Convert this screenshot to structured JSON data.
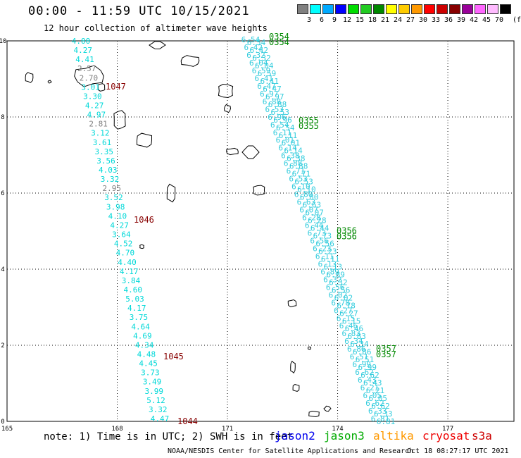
{
  "header": {
    "title": "00:00 - 11:59 UTC 10/15/2021",
    "subtitle": "12 hour collection of altimeter wave heights"
  },
  "legend": {
    "unit": "(ft)",
    "bins": [
      {
        "color": "#808080",
        "label": "3"
      },
      {
        "color": "#00ffff",
        "label": "6"
      },
      {
        "color": "#00aaff",
        "label": "9"
      },
      {
        "color": "#0000ff",
        "label": "12"
      },
      {
        "color": "#00dd00",
        "label": "15"
      },
      {
        "color": "#22cc22",
        "label": "18"
      },
      {
        "color": "#008800",
        "label": "21"
      },
      {
        "color": "#ffff00",
        "label": "24"
      },
      {
        "color": "#ffcc00",
        "label": "27"
      },
      {
        "color": "#ff9900",
        "label": "30"
      },
      {
        "color": "#ff0000",
        "label": "33"
      },
      {
        "color": "#cc0000",
        "label": "36"
      },
      {
        "color": "#880000",
        "label": "39"
      },
      {
        "color": "#990099",
        "label": "42"
      },
      {
        "color": "#ff66ff",
        "label": "45"
      },
      {
        "color": "#ffbbff",
        "label": "70"
      },
      {
        "color": "#000000",
        "label": ""
      }
    ]
  },
  "map": {
    "lon_ticks": [
      "165",
      "168",
      "171",
      "174",
      "177"
    ],
    "lat_ticks": [
      "0",
      "2",
      "4",
      "6",
      "8",
      "10"
    ],
    "west_track": {
      "pass_times": [
        {
          "label": "1047",
          "color": "#880000",
          "lat": 8.8
        },
        {
          "label": "1046",
          "color": "#880000",
          "lat": 5.3
        },
        {
          "label": "1045",
          "color": "#880000",
          "lat": 1.7
        },
        {
          "label": "1044",
          "color": "#880000",
          "lat": 0.0
        }
      ],
      "readings": [
        {
          "v": "4.00",
          "c": "#00d8d8"
        },
        {
          "v": "4.27",
          "c": "#00d8d8"
        },
        {
          "v": "4.41",
          "c": "#00d8d8"
        },
        {
          "v": "2.57",
          "c": "#808080"
        },
        {
          "v": "2.70",
          "c": "#808080"
        },
        {
          "v": "3.01",
          "c": "#00d8d8"
        },
        {
          "v": "3.30",
          "c": "#00d8d8"
        },
        {
          "v": "4.27",
          "c": "#00d8d8"
        },
        {
          "v": "4.97",
          "c": "#00d8d8"
        },
        {
          "v": "2.81",
          "c": "#808080"
        },
        {
          "v": "3.12",
          "c": "#00d8d8"
        },
        {
          "v": "3.61",
          "c": "#00d8d8"
        },
        {
          "v": "3.35",
          "c": "#00d8d8"
        },
        {
          "v": "3.56",
          "c": "#00d8d8"
        },
        {
          "v": "4.03",
          "c": "#00d8d8"
        },
        {
          "v": "3.32",
          "c": "#00d8d8"
        },
        {
          "v": "2.95",
          "c": "#808080"
        },
        {
          "v": "3.52",
          "c": "#00d8d8"
        },
        {
          "v": "3.98",
          "c": "#00d8d8"
        },
        {
          "v": "4.10",
          "c": "#00d8d8"
        },
        {
          "v": "4.27",
          "c": "#00d8d8"
        },
        {
          "v": "3.64",
          "c": "#00d8d8"
        },
        {
          "v": "4.52",
          "c": "#00d8d8"
        },
        {
          "v": "4.70",
          "c": "#00d8d8"
        },
        {
          "v": "4.40",
          "c": "#00d8d8"
        },
        {
          "v": "4.17",
          "c": "#00d8d8"
        },
        {
          "v": "3.84",
          "c": "#00d8d8"
        },
        {
          "v": "4.60",
          "c": "#00d8d8"
        },
        {
          "v": "5.03",
          "c": "#00d8d8"
        },
        {
          "v": "4.17",
          "c": "#00d8d8"
        },
        {
          "v": "3.75",
          "c": "#00d8d8"
        },
        {
          "v": "4.64",
          "c": "#00d8d8"
        },
        {
          "v": "4.69",
          "c": "#00d8d8"
        },
        {
          "v": "4.34",
          "c": "#00d8d8"
        },
        {
          "v": "4.48",
          "c": "#00d8d8"
        },
        {
          "v": "4.45",
          "c": "#00d8d8"
        },
        {
          "v": "3.73",
          "c": "#00d8d8"
        },
        {
          "v": "3.49",
          "c": "#00d8d8"
        },
        {
          "v": "3.99",
          "c": "#00d8d8"
        },
        {
          "v": "5.12",
          "c": "#00d8d8"
        },
        {
          "v": "3.32",
          "c": "#00d8d8"
        },
        {
          "v": "4.47",
          "c": "#00d8d8"
        }
      ]
    },
    "east_track": {
      "pass_times": [
        {
          "label": "0354",
          "color": "#008800",
          "lat": 10.0
        },
        {
          "label": "0355",
          "color": "#008800",
          "lat": 7.8
        },
        {
          "label": "0356",
          "color": "#008800",
          "lat": 4.9
        },
        {
          "label": "0357",
          "color": "#008800",
          "lat": 1.8
        }
      ],
      "readings": [
        "6.54",
        "6.42",
        "6.32",
        "6.04",
        "6.59",
        "6.41",
        "6.47",
        "6.97",
        "6.88",
        "6.53",
        "6.96",
        "6.54",
        "6.11",
        "6.01",
        "6.14",
        "6.38",
        "6.88",
        "6.71",
        "6.53",
        "6.10",
        "6.80",
        "6.63",
        "6.07",
        "6.28",
        "6.44",
        "6.73",
        "6.56",
        "6.23",
        "6.11",
        "6.13",
        "6.89",
        "6.32",
        "6.56",
        "6.02",
        "6.78",
        "6.27",
        "6.15",
        "6.46",
        "6.83",
        "6.34",
        "6.86",
        "6.51",
        "6.99",
        "6.62",
        "6.43",
        "6.21",
        "6.05",
        "6.62",
        "6.33",
        "6.81"
      ],
      "color": "#33ccdd"
    }
  },
  "footer": {
    "note": "note: 1) Time is in UTC; 2) SWH is in feet",
    "satellites": [
      {
        "name": "jason2",
        "color": "#0000ee"
      },
      {
        "name": "jason3",
        "color": "#00aa00"
      },
      {
        "name": "altika",
        "color": "#ff9900"
      },
      {
        "name": "cryosat",
        "color": "#ee0000"
      },
      {
        "name": "s3a",
        "color": "#cc0000"
      }
    ],
    "credit": "NOAA/NESDIS Center for Satellite Applications and Research",
    "timestamp": "Oct 18 08:27:17 UTC 2021"
  }
}
